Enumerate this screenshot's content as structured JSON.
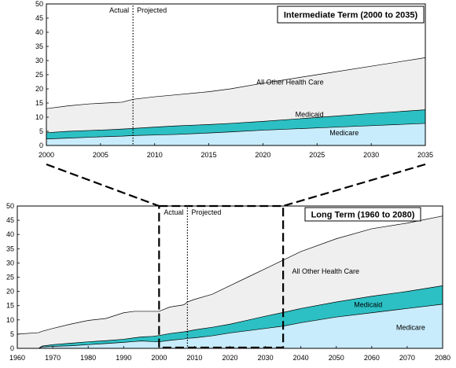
{
  "colors": {
    "medicare": "#c8ecfb",
    "medicaid": "#2cc0c4",
    "all_other": "#efefef",
    "line": "#000000"
  },
  "labels": {
    "actual": "Actual",
    "projected": "Projected",
    "all_other": "All Other Health Care",
    "medicaid": "Medicaid",
    "medicare": "Medicare"
  },
  "chart_data": [
    {
      "type": "area",
      "title": "Intermediate Term (2000 to 2035)",
      "stacked": true,
      "xlim": [
        2000,
        2035
      ],
      "ylim": [
        0,
        50
      ],
      "x_ticks": [
        2000,
        2005,
        2010,
        2015,
        2020,
        2025,
        2030,
        2035
      ],
      "y_ticks": [
        0,
        5,
        10,
        15,
        20,
        25,
        30,
        35,
        40,
        45,
        50
      ],
      "grid": false,
      "actual_projected_divider_year": 2008,
      "x": [
        2000,
        2002,
        2004,
        2006,
        2007,
        2008,
        2010,
        2012,
        2015,
        2017,
        2020,
        2025,
        2030,
        2035
      ],
      "series": [
        {
          "name": "Medicare",
          "values": [
            2.3,
            2.6,
            2.9,
            3.2,
            3.3,
            3.5,
            3.7,
            3.9,
            4.4,
            4.8,
            5.4,
            6.2,
            7.0,
            7.8
          ]
        },
        {
          "name": "Medicaid",
          "values": [
            4.5,
            5.0,
            5.3,
            5.6,
            5.8,
            6.0,
            6.5,
            6.9,
            7.4,
            7.8,
            8.5,
            9.9,
            11.3,
            12.6
          ]
        },
        {
          "name": "All Other Health Care",
          "values": [
            13.0,
            14.0,
            14.7,
            15.1,
            15.3,
            16.3,
            17.2,
            17.9,
            19.0,
            20.0,
            22.0,
            25.0,
            28.0,
            31.0
          ]
        }
      ]
    },
    {
      "type": "area",
      "title": "Long Term (1960 to 2080)",
      "stacked": true,
      "xlim": [
        1960,
        2080
      ],
      "ylim": [
        0,
        50
      ],
      "x_ticks": [
        1960,
        1970,
        1980,
        1990,
        2000,
        2010,
        2020,
        2030,
        2040,
        2050,
        2060,
        2070,
        2080
      ],
      "y_ticks": [
        0,
        5,
        10,
        15,
        20,
        25,
        30,
        35,
        40,
        45,
        50
      ],
      "grid": false,
      "actual_projected_divider_year": 2008,
      "zoom_window": {
        "x": [
          2000,
          2035
        ],
        "y": [
          0,
          50
        ]
      },
      "x": [
        1960,
        1966,
        1967,
        1970,
        1975,
        1980,
        1985,
        1990,
        1993,
        1995,
        1998,
        2000,
        2003,
        2007,
        2008,
        2010,
        2015,
        2020,
        2025,
        2030,
        2035,
        2040,
        2050,
        2060,
        2070,
        2080
      ],
      "series": [
        {
          "name": "Medicare",
          "values": [
            0,
            0,
            0.5,
            0.7,
            0.9,
            1.3,
            1.7,
            2.1,
            2.4,
            2.6,
            2.4,
            2.3,
            2.8,
            3.3,
            3.5,
            3.7,
            4.4,
            5.4,
            6.2,
            7.0,
            7.8,
            9.0,
            11.0,
            12.5,
            14.0,
            15.5
          ]
        },
        {
          "name": "Medicaid",
          "values": [
            0,
            0,
            0.8,
            1.3,
            1.8,
            2.3,
            2.7,
            3.2,
            3.7,
            4.0,
            4.2,
            4.5,
            5.2,
            5.8,
            6.0,
            6.5,
            7.4,
            8.5,
            9.9,
            11.3,
            12.6,
            14.0,
            16.3,
            18.3,
            20.0,
            22.0
          ]
        },
        {
          "name": "All Other Health Care",
          "values": [
            5.0,
            5.5,
            6.0,
            7.0,
            8.5,
            9.8,
            10.5,
            12.5,
            13.0,
            13.0,
            13.0,
            13.0,
            14.5,
            15.3,
            16.3,
            17.2,
            19.0,
            22.0,
            25.0,
            28.0,
            31.0,
            34.0,
            38.5,
            42.0,
            44.0,
            46.5
          ]
        }
      ]
    }
  ]
}
